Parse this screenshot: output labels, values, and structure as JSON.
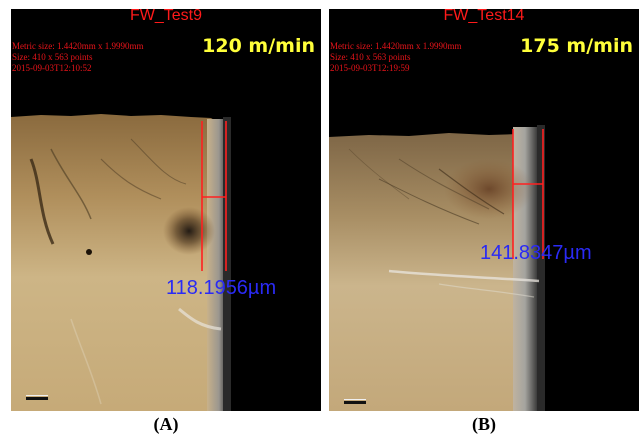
{
  "panels": [
    {
      "id": "A",
      "test_name": "FW_Test9",
      "metadata": [
        "Metric size: 1.4420mm x 1.9990mm",
        "Size: 410 x 563 points",
        "2015-09-03T12:10:52"
      ],
      "cutting_speed": "120 m/min",
      "measurement": "118.1956µm",
      "caption": "(A)"
    },
    {
      "id": "B",
      "test_name": "FW_Test14",
      "metadata": [
        "Metric size: 1.4420mm x 1.9990mm",
        "Size: 410 x 563 points",
        "2015-09-03T12:19:59"
      ],
      "cutting_speed": "175 m/min",
      "measurement": "141.8347µm",
      "caption": "(B)"
    }
  ],
  "colors": {
    "background": "#000000",
    "title_text": "#ff1a1a",
    "metadata_text": "#e8141a",
    "speed_text": "#ffff3a",
    "measurement_text": "#2a2af5",
    "measurement_lines": "#ff2020",
    "surface": "#c4a878"
  }
}
